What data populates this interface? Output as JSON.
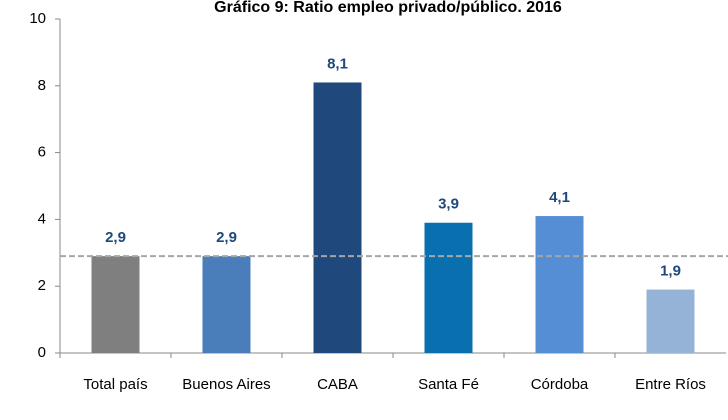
{
  "chart_data": {
    "type": "bar",
    "title": "Gráfico 9: Ratio empleo privado/público. 2016",
    "categories": [
      "Total país",
      "Buenos Aires",
      "CABA",
      "Santa Fé",
      "Córdoba",
      "Entre Ríos"
    ],
    "values": [
      2.9,
      2.9,
      8.1,
      3.9,
      4.1,
      1.9
    ],
    "value_labels": [
      "2,9",
      "2,9",
      "8,1",
      "3,9",
      "4,1",
      "1,9"
    ],
    "colors": [
      "#7f7f7f",
      "#4a7ebb",
      "#1f497d",
      "#0a6fae",
      "#558ed5",
      "#95b3d7"
    ],
    "reference_line": 2.9,
    "ylim": [
      0,
      10
    ],
    "yticks": [
      0,
      2,
      4,
      6,
      8,
      10
    ],
    "grid": false
  }
}
